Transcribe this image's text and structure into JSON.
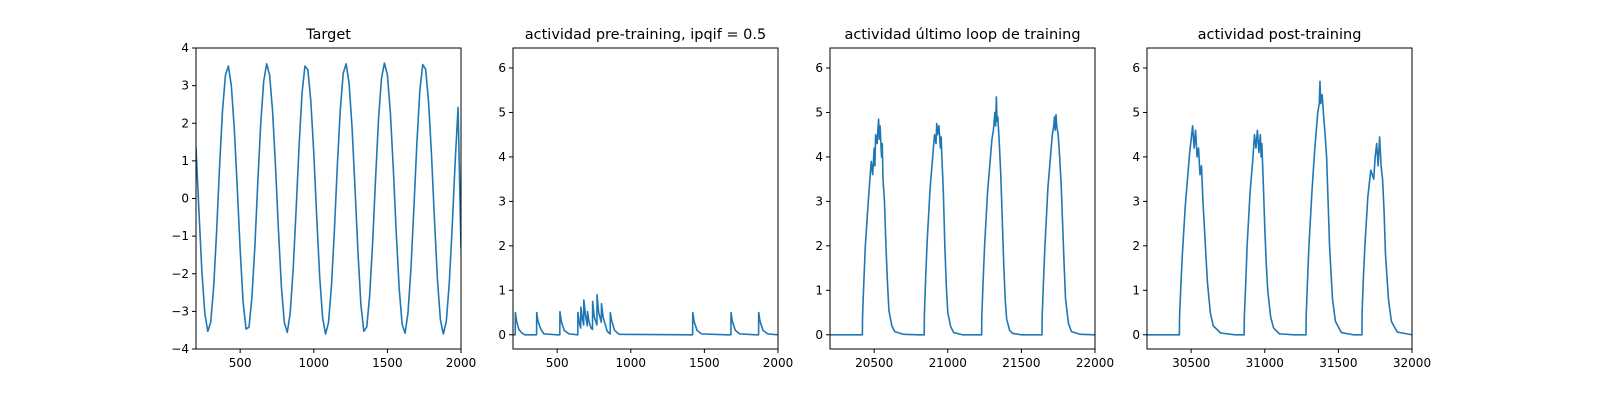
{
  "chart_data": [
    {
      "type": "line",
      "title": "Target",
      "xlabel": "",
      "ylabel": "",
      "xlim": [
        200,
        2000
      ],
      "ylim": [
        -4,
        4
      ],
      "xticks": [
        500,
        1000,
        1500,
        2000
      ],
      "yticks": [
        -4,
        -3,
        -2,
        -1,
        0,
        1,
        2,
        3,
        4
      ],
      "grid": false,
      "series": [
        {
          "color": "#1f77b4",
          "x": [
            200,
            220,
            240,
            260,
            280,
            300,
            320,
            340,
            360,
            380,
            400,
            420,
            440,
            460,
            480,
            500,
            520,
            540,
            560,
            580,
            600,
            620,
            640,
            660,
            680,
            700,
            720,
            740,
            760,
            780,
            800,
            820,
            840,
            860,
            880,
            900,
            920,
            940,
            960,
            980,
            1000,
            1020,
            1040,
            1060,
            1080,
            1100,
            1120,
            1140,
            1160,
            1180,
            1200,
            1220,
            1240,
            1260,
            1280,
            1300,
            1320,
            1340,
            1360,
            1380,
            1400,
            1420,
            1440,
            1460,
            1480,
            1500,
            1520,
            1540,
            1560,
            1580,
            1600,
            1620,
            1640,
            1660,
            1680,
            1700,
            1720,
            1740,
            1760,
            1780,
            1800,
            1820,
            1840,
            1860,
            1880,
            1900,
            1920,
            1940,
            1960,
            1980,
            2000
          ],
          "y": [
            1.35,
            -0.34,
            -1.94,
            -3.06,
            -3.53,
            -3.29,
            -2.35,
            -0.88,
            0.85,
            2.33,
            3.28,
            3.52,
            3.0,
            1.86,
            0.31,
            -1.36,
            -2.76,
            -3.47,
            -3.42,
            -2.62,
            -1.26,
            0.45,
            2.01,
            3.12,
            3.58,
            3.28,
            2.33,
            0.87,
            -0.84,
            -2.34,
            -3.3,
            -3.56,
            -3.04,
            -1.88,
            -0.3,
            1.38,
            2.79,
            3.52,
            3.42,
            2.59,
            1.21,
            -0.5,
            -2.07,
            -3.17,
            -3.6,
            -3.3,
            -2.33,
            -0.85,
            0.87,
            2.36,
            3.33,
            3.58,
            3.05,
            1.89,
            0.28,
            -1.41,
            -2.82,
            -3.53,
            -3.41,
            -2.56,
            -1.16,
            0.55,
            2.12,
            3.2,
            3.6,
            3.29,
            2.3,
            0.81,
            -0.9,
            -2.38,
            -3.34,
            -3.58,
            -3.04,
            -1.87,
            -0.25,
            1.44,
            2.85,
            3.56,
            3.43,
            2.55,
            1.14,
            -0.58,
            -2.15,
            -3.22,
            -3.6,
            -3.27,
            -2.27,
            -0.77,
            0.94,
            2.42,
            -1.32
          ]
        }
      ]
    },
    {
      "type": "line",
      "title": "actividad pre-training, ipqif = 0.5",
      "xlabel": "",
      "ylabel": "",
      "xlim": [
        200,
        2000
      ],
      "ylim": [
        -0.32,
        6.45
      ],
      "xticks": [
        500,
        1000,
        1500,
        2000
      ],
      "yticks": [
        0,
        1,
        2,
        3,
        4,
        5,
        6
      ],
      "grid": false,
      "series": [
        {
          "color": "#1f77b4",
          "x": [
            200,
            215,
            216,
            225,
            240,
            260,
            280,
            340,
            360,
            361,
            370,
            390,
            410,
            500,
            518,
            519,
            528,
            548,
            580,
            640,
            641,
            652,
            660,
            661,
            672,
            680,
            681,
            692,
            705,
            706,
            716,
            730,
            740,
            741,
            752,
            770,
            771,
            782,
            800,
            801,
            812,
            840,
            860,
            861,
            870,
            890,
            920,
            1400,
            1420,
            1421,
            1430,
            1450,
            1480,
            1650,
            1680,
            1681,
            1690,
            1710,
            1740,
            1850,
            1868,
            1869,
            1878,
            1898,
            1930,
            2000
          ],
          "y": [
            0,
            0,
            0.5,
            0.3,
            0.12,
            0.04,
            0,
            0,
            0,
            0.5,
            0.3,
            0.12,
            0.02,
            0,
            0,
            0.52,
            0.3,
            0.1,
            0.02,
            0,
            0.5,
            0.25,
            0.15,
            0.62,
            0.35,
            0.22,
            0.78,
            0.45,
            0.2,
            0.52,
            0.3,
            0.15,
            0.12,
            0.75,
            0.4,
            0.22,
            0.9,
            0.5,
            0.28,
            0.7,
            0.4,
            0.08,
            0.02,
            0.5,
            0.32,
            0.1,
            0.01,
            0,
            0,
            0.5,
            0.3,
            0.1,
            0.02,
            0,
            0,
            0.5,
            0.3,
            0.1,
            0.02,
            0,
            0,
            0.5,
            0.3,
            0.1,
            0.02,
            0
          ]
        }
      ]
    },
    {
      "type": "line",
      "title": "actividad último loop de training",
      "xlabel": "",
      "ylabel": "",
      "xlim": [
        20200,
        22000
      ],
      "ylim": [
        -0.32,
        6.45
      ],
      "xticks": [
        20500,
        21000,
        21500,
        22000
      ],
      "yticks": [
        0,
        1,
        2,
        3,
        4,
        5,
        6
      ],
      "grid": false,
      "series": [
        {
          "color": "#1f77b4",
          "x": [
            20200,
            20300,
            20400,
            20420,
            20421,
            20430,
            20440,
            20460,
            20480,
            20490,
            20500,
            20505,
            20510,
            20520,
            20530,
            20535,
            20540,
            20550,
            20555,
            20560,
            20570,
            20580,
            20590,
            20600,
            20620,
            20640,
            20700,
            20800,
            20840,
            20841,
            20850,
            20860,
            20880,
            20900,
            20910,
            20920,
            20925,
            20930,
            20940,
            20950,
            20955,
            20960,
            20970,
            20980,
            20990,
            21000,
            21020,
            21040,
            21100,
            21200,
            21230,
            21231,
            21240,
            21250,
            21270,
            21290,
            21300,
            21310,
            21320,
            21325,
            21330,
            21335,
            21340,
            21350,
            21360,
            21370,
            21380,
            21390,
            21400,
            21420,
            21440,
            21500,
            21600,
            21640,
            21641,
            21650,
            21660,
            21680,
            21700,
            21710,
            21720,
            21725,
            21730,
            21735,
            21740,
            21750,
            21760,
            21770,
            21780,
            21790,
            21800,
            21820,
            21840,
            21900,
            22000
          ],
          "y": [
            0,
            0,
            0,
            0,
            0.4,
            1.2,
            2.0,
            3.0,
            3.9,
            3.6,
            4.2,
            3.8,
            4.5,
            4.3,
            4.85,
            4.4,
            4.7,
            4.0,
            4.3,
            3.5,
            3.0,
            2.0,
            1.2,
            0.55,
            0.2,
            0.07,
            0.01,
            0,
            0,
            0.45,
            1.3,
            2.1,
            3.3,
            4.1,
            4.5,
            4.3,
            4.75,
            4.5,
            4.7,
            4.2,
            4.45,
            4.0,
            3.2,
            2.0,
            1.1,
            0.5,
            0.18,
            0.05,
            0,
            0,
            0,
            0.4,
            1.2,
            2.0,
            3.2,
            4.0,
            4.4,
            4.6,
            5.0,
            4.7,
            5.35,
            4.8,
            4.9,
            4.3,
            3.6,
            2.6,
            1.6,
            0.8,
            0.35,
            0.1,
            0.03,
            0,
            0,
            0,
            0.4,
            1.2,
            2.0,
            3.3,
            4.1,
            4.5,
            4.7,
            4.9,
            4.6,
            4.95,
            4.7,
            4.5,
            4.0,
            3.4,
            2.5,
            1.6,
            0.8,
            0.25,
            0.07,
            0.01,
            0
          ]
        }
      ]
    },
    {
      "type": "line",
      "title": "actividad post-training",
      "xlabel": "",
      "ylabel": "",
      "xlim": [
        30200,
        32000
      ],
      "ylim": [
        -0.32,
        6.45
      ],
      "xticks": [
        30500,
        31000,
        31500,
        32000
      ],
      "yticks": [
        0,
        1,
        2,
        3,
        4,
        5,
        6
      ],
      "grid": false,
      "series": [
        {
          "color": "#1f77b4",
          "x": [
            30200,
            30300,
            30400,
            30420,
            30421,
            30430,
            30440,
            30460,
            30480,
            30490,
            30500,
            30510,
            30520,
            30530,
            30540,
            30550,
            30560,
            30570,
            30580,
            30590,
            30600,
            30610,
            30630,
            30650,
            30700,
            30800,
            30860,
            30861,
            30870,
            30880,
            30900,
            30920,
            30930,
            30940,
            30950,
            30960,
            30970,
            30975,
            30980,
            30990,
            31000,
            31010,
            31020,
            31040,
            31060,
            31100,
            31200,
            31280,
            31281,
            31290,
            31300,
            31320,
            31340,
            31350,
            31360,
            31370,
            31375,
            31380,
            31390,
            31400,
            31410,
            31420,
            31430,
            31440,
            31460,
            31480,
            31520,
            31600,
            31660,
            31661,
            31670,
            31680,
            31700,
            31720,
            31740,
            31750,
            31760,
            31770,
            31780,
            31790,
            31800,
            31810,
            31820,
            31840,
            31860,
            31900,
            32000
          ],
          "y": [
            0,
            0,
            0,
            0,
            0.4,
            1.1,
            1.8,
            2.9,
            3.7,
            4.1,
            4.4,
            4.7,
            4.2,
            4.6,
            4.0,
            4.2,
            3.6,
            3.8,
            3.0,
            2.4,
            1.8,
            1.2,
            0.5,
            0.2,
            0.04,
            0,
            0,
            0.4,
            1.1,
            2.0,
            3.2,
            4.0,
            4.5,
            4.2,
            4.6,
            4.1,
            4.5,
            4.0,
            4.3,
            3.4,
            2.4,
            1.6,
            1.0,
            0.4,
            0.15,
            0.02,
            0,
            0,
            0.4,
            1.2,
            2.0,
            3.2,
            4.2,
            4.6,
            5.0,
            5.2,
            5.7,
            5.2,
            5.4,
            4.9,
            4.5,
            4.0,
            3.0,
            2.0,
            0.8,
            0.3,
            0.05,
            0,
            0,
            0.5,
            1.3,
            2.0,
            3.1,
            3.7,
            3.5,
            4.0,
            4.3,
            3.8,
            4.45,
            3.8,
            3.5,
            2.8,
            1.8,
            0.8,
            0.3,
            0.06,
            0
          ]
        }
      ]
    }
  ]
}
